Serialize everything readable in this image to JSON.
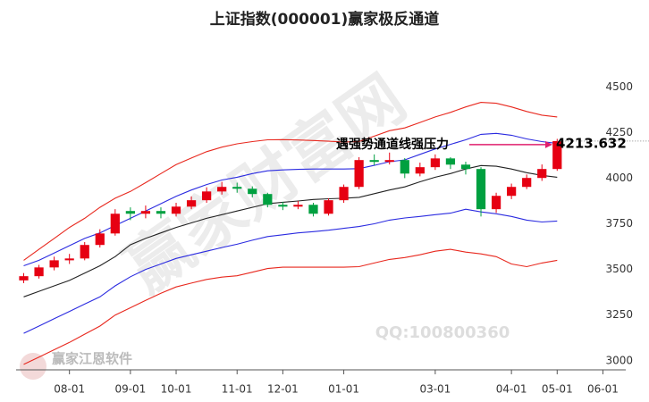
{
  "chart_data": {
    "type": "candlestick",
    "title": "上证指数(000001)赢家极反通道",
    "annotation": "遇强势通道线强压力",
    "price_label": "4213.632",
    "watermark": "赢家财富网",
    "logo_text": "赢家江恩软件",
    "qq_text": "QQ:100800360",
    "categories": [
      null,
      null,
      null,
      "08-01",
      null,
      null,
      null,
      "09-01",
      null,
      null,
      "10-01",
      null,
      null,
      null,
      "11-01",
      null,
      null,
      "12-01",
      null,
      null,
      null,
      "01-01",
      null,
      null,
      null,
      null,
      null,
      "03-01",
      null,
      null,
      null,
      null,
      "04-01",
      null,
      null,
      "05-01",
      null,
      null,
      "06-01",
      null
    ],
    "open": [
      3450,
      3473,
      3521,
      3560,
      3570,
      3644,
      3707,
      3830,
      3815,
      3830,
      3815,
      3854,
      3889,
      3937,
      3962,
      3952,
      3923,
      3864,
      3854,
      3864,
      3815,
      3889,
      3962,
      4109,
      4099,
      4109,
      4035,
      4070,
      4118,
      4084,
      4060,
      3840,
      3913,
      3962,
      4011,
      4060,
      null,
      null,
      null,
      null
    ],
    "high": [
      3490,
      3535,
      3580,
      3595,
      3660,
      3730,
      3840,
      3850,
      3860,
      3850,
      3875,
      3910,
      3960,
      3990,
      3985,
      3965,
      3930,
      3880,
      3885,
      3875,
      3900,
      3975,
      4125,
      4140,
      4150,
      4120,
      4095,
      4140,
      4125,
      4100,
      4070,
      3930,
      3980,
      4030,
      4085,
      4225,
      null,
      null,
      null,
      null
    ],
    "low": [
      3435,
      3460,
      3505,
      3540,
      3560,
      3630,
      3695,
      3780,
      3790,
      3790,
      3800,
      3840,
      3875,
      3920,
      3930,
      3905,
      3850,
      3835,
      3840,
      3800,
      3805,
      3875,
      3950,
      4080,
      4085,
      4010,
      4020,
      4055,
      4060,
      4030,
      3800,
      3820,
      3895,
      3950,
      3995,
      4050,
      null,
      null,
      null,
      null
    ],
    "close": [
      3473,
      3521,
      3560,
      3570,
      3644,
      3707,
      3815,
      3815,
      3830,
      3815,
      3854,
      3889,
      3937,
      3962,
      3952,
      3923,
      3864,
      3854,
      3864,
      3815,
      3889,
      3962,
      4109,
      4099,
      4109,
      4035,
      4070,
      4118,
      4084,
      4060,
      3840,
      3913,
      3962,
      4011,
      4060,
      4213,
      null,
      null,
      null,
      null
    ],
    "up_color": "#e60012",
    "down_color": "#00a040",
    "series": [
      {
        "color": "#e8281e",
        "values": [
          3560,
          3620,
          3680,
          3740,
          3790,
          3850,
          3900,
          3937,
          3985,
          4035,
          4084,
          4120,
          4155,
          4180,
          4198,
          4210,
          4220,
          4221,
          4219,
          4216,
          4212,
          4208,
          4210,
          4240,
          4270,
          4285,
          4315,
          4345,
          4370,
          4400,
          4425,
          4420,
          4400,
          4375,
          4355,
          4345,
          null,
          null,
          null,
          null
        ]
      },
      {
        "color": "#2b2be0",
        "values": [
          3530,
          3560,
          3600,
          3640,
          3680,
          3710,
          3750,
          3790,
          3830,
          3870,
          3910,
          3945,
          3975,
          4000,
          4015,
          4035,
          4050,
          4055,
          4058,
          4060,
          4060,
          4060,
          4062,
          4080,
          4100,
          4110,
          4140,
          4170,
          4195,
          4220,
          4250,
          4255,
          4245,
          4225,
          4210,
          4200,
          null,
          null,
          null,
          null
        ]
      },
      {
        "color": "#222222",
        "values": [
          3360,
          3390,
          3420,
          3450,
          3490,
          3530,
          3580,
          3645,
          3680,
          3710,
          3740,
          3765,
          3790,
          3810,
          3830,
          3850,
          3870,
          3878,
          3885,
          3893,
          3897,
          3900,
          3905,
          3925,
          3945,
          3962,
          3990,
          4015,
          4035,
          4060,
          4079,
          4075,
          4060,
          4040,
          4025,
          4015,
          null,
          null,
          null,
          null
        ]
      },
      {
        "color": "#2b2be0",
        "values": [
          3160,
          3200,
          3240,
          3280,
          3320,
          3360,
          3420,
          3470,
          3510,
          3540,
          3570,
          3590,
          3610,
          3630,
          3648,
          3670,
          3690,
          3700,
          3710,
          3717,
          3725,
          3735,
          3745,
          3760,
          3780,
          3792,
          3800,
          3810,
          3818,
          3840,
          3825,
          3815,
          3800,
          3780,
          3770,
          3775,
          null,
          null,
          null,
          null
        ]
      },
      {
        "color": "#e8281e",
        "values": [
          2990,
          3030,
          3070,
          3110,
          3155,
          3200,
          3260,
          3300,
          3340,
          3380,
          3414,
          3435,
          3455,
          3468,
          3475,
          3495,
          3515,
          3522,
          3522,
          3522,
          3522,
          3522,
          3525,
          3545,
          3565,
          3575,
          3590,
          3610,
          3620,
          3605,
          3595,
          3580,
          3540,
          3525,
          3545,
          3560,
          null,
          null,
          null,
          null
        ]
      }
    ],
    "ylim": [
      2960,
      4790
    ],
    "yticks": [
      3000,
      3250,
      3500,
      3750,
      4000,
      4250,
      4500
    ]
  }
}
